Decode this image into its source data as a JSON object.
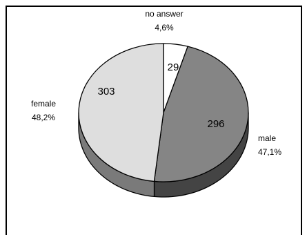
{
  "chart_data": {
    "type": "pie",
    "categories": [
      "no answer",
      "male",
      "female"
    ],
    "values": [
      29,
      296,
      303
    ],
    "percent_labels": [
      "4,6%",
      "47,1%",
      "48,2%"
    ],
    "colors": [
      "#ffffff",
      "#858585",
      "#dedede"
    ],
    "side_colors": [
      "#bdbdbd",
      "#444444",
      "#7a7a7a"
    ],
    "style": "3d-tilted",
    "legend": "none",
    "grid": false
  }
}
